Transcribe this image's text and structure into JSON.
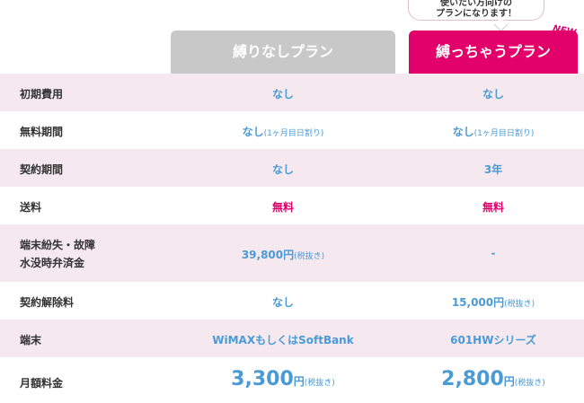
{
  "callout": {
    "line1": "使いたい方向けの",
    "line2": "プランになります！"
  },
  "badge": "NEW",
  "plans": {
    "a": "縛りなしプラン",
    "b": "縛っちゃうプラン"
  },
  "rows": {
    "initial_cost": {
      "label": "初期費用",
      "a": "なし",
      "b": "なし"
    },
    "free_period": {
      "label": "無料期間",
      "a": "なし",
      "a_note": "(1ヶ月目日割り)",
      "b": "なし",
      "b_note": "(1ヶ月目日割り)"
    },
    "contract_period": {
      "label": "契約期間",
      "a": "なし",
      "b": "3年"
    },
    "shipping": {
      "label": "送料",
      "a": "無料",
      "b": "無料"
    },
    "loss": {
      "label1": "端末紛失・故障",
      "label2": "水没時弁済金",
      "a": "39,800円",
      "a_note": "(税抜き)",
      "b": "-"
    },
    "cancellation": {
      "label": "契約解除料",
      "a": "なし",
      "b": "15,000円",
      "b_note": "(税抜き)"
    },
    "device": {
      "label": "端末",
      "a": "WiMAXもしくはSoftBank",
      "b": "601HWシリーズ"
    },
    "monthly": {
      "label": "月額料金",
      "a_num": "3,300",
      "a_unit": "円",
      "a_note": "(税抜き)",
      "b_num": "2,800",
      "b_unit": "円",
      "b_note": "(税抜き)"
    }
  }
}
